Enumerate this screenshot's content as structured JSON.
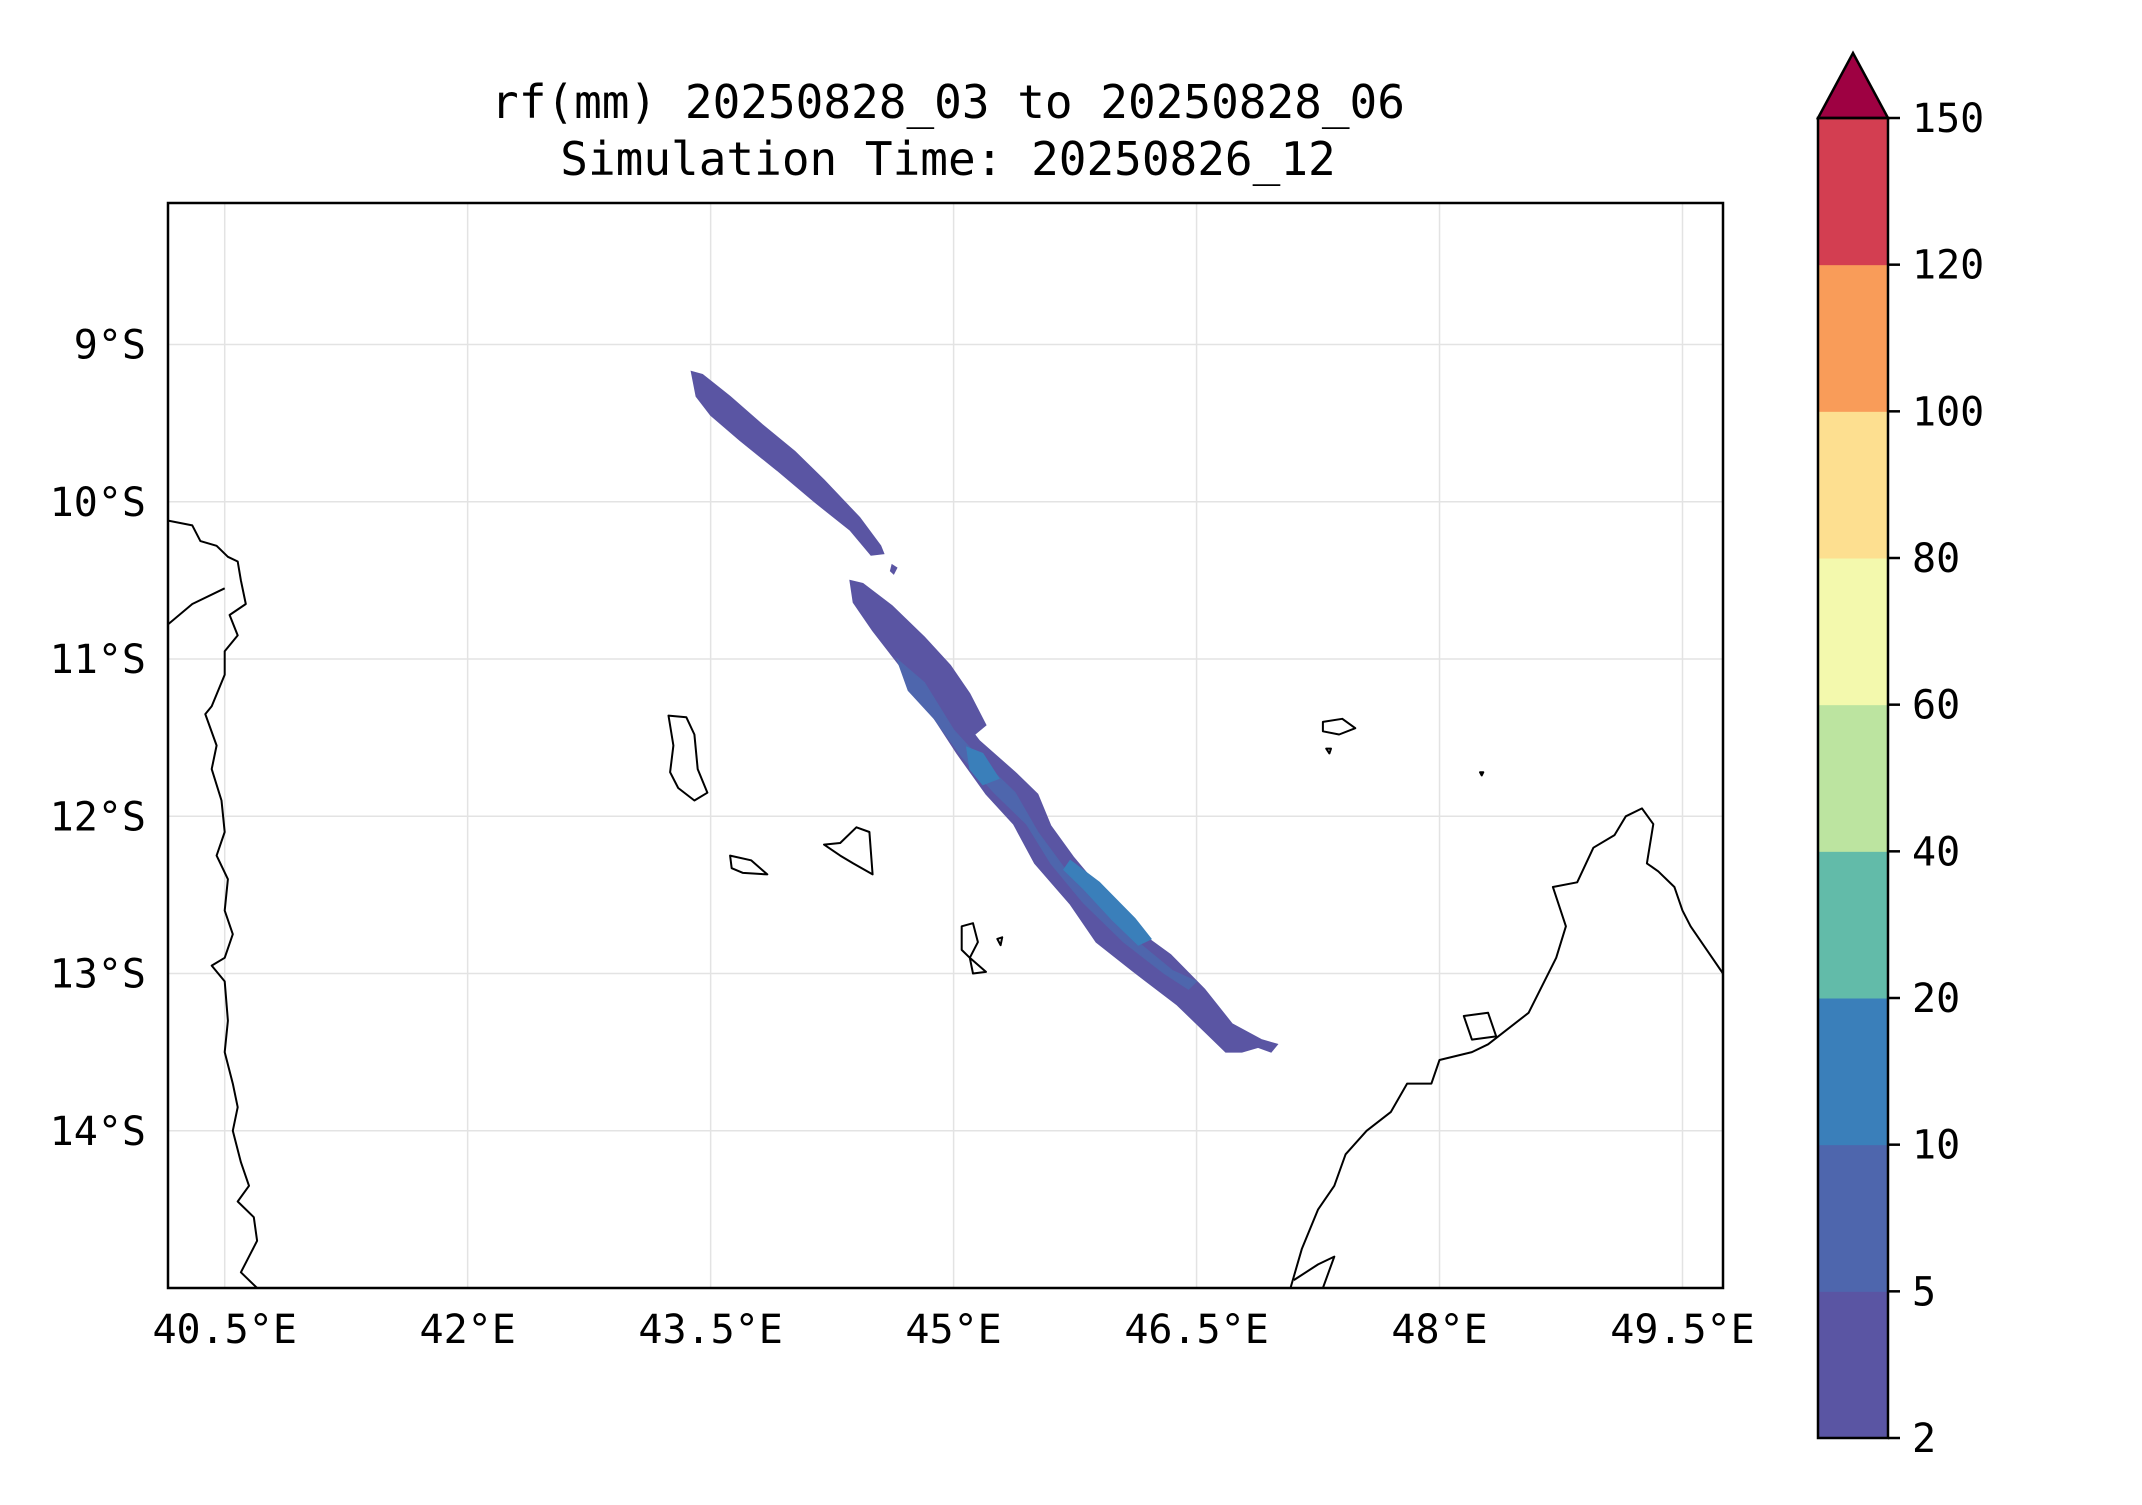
{
  "title": {
    "line1": "rf(mm) 20250828_03 to 20250828_06",
    "line2": "Simulation Time: 20250826_12"
  },
  "map": {
    "lon_range": [
      40.15,
      49.75
    ],
    "lat_range": [
      -15.0,
      -8.1
    ],
    "gridlines": true,
    "x_ticks": [
      {
        "value": 40.5,
        "label": "40.5°E"
      },
      {
        "value": 42.0,
        "label": "42°E"
      },
      {
        "value": 43.5,
        "label": "43.5°E"
      },
      {
        "value": 45.0,
        "label": "45°E"
      },
      {
        "value": 46.5,
        "label": "46.5°E"
      },
      {
        "value": 48.0,
        "label": "48°E"
      },
      {
        "value": 49.5,
        "label": "49.5°E"
      }
    ],
    "y_ticks": [
      {
        "value": -9,
        "label": "9°S"
      },
      {
        "value": -10,
        "label": "10°S"
      },
      {
        "value": -11,
        "label": "11°S"
      },
      {
        "value": -12,
        "label": "12°S"
      },
      {
        "value": -13,
        "label": "13°S"
      },
      {
        "value": -14,
        "label": "14°S"
      }
    ],
    "rain_band": {
      "outer": [
        [
          43.38,
          -9.17
        ],
        [
          43.45,
          -9.19
        ],
        [
          43.62,
          -9.33
        ],
        [
          43.82,
          -9.51
        ],
        [
          44.02,
          -9.68
        ],
        [
          44.2,
          -9.86
        ],
        [
          44.42,
          -10.1
        ],
        [
          44.55,
          -10.28
        ],
        [
          44.57,
          -10.33
        ],
        [
          44.49,
          -10.34
        ],
        [
          44.36,
          -10.18
        ],
        [
          44.14,
          -10.0
        ],
        [
          43.91,
          -9.8
        ],
        [
          43.68,
          -9.61
        ],
        [
          43.5,
          -9.45
        ],
        [
          43.41,
          -9.33
        ]
      ],
      "outer2": [
        [
          44.36,
          -10.5
        ],
        [
          44.44,
          -10.52
        ],
        [
          44.62,
          -10.66
        ],
        [
          44.82,
          -10.86
        ],
        [
          44.98,
          -11.04
        ],
        [
          45.1,
          -11.22
        ],
        [
          45.2,
          -11.42
        ],
        [
          45.13,
          -11.48
        ],
        [
          45.16,
          -11.52
        ],
        [
          45.38,
          -11.72
        ],
        [
          45.52,
          -11.86
        ],
        [
          45.6,
          -12.06
        ],
        [
          45.74,
          -12.26
        ],
        [
          45.92,
          -12.48
        ],
        [
          46.1,
          -12.7
        ],
        [
          46.34,
          -12.88
        ],
        [
          46.55,
          -13.1
        ],
        [
          46.72,
          -13.32
        ],
        [
          46.9,
          -13.42
        ],
        [
          47.0,
          -13.45
        ],
        [
          46.96,
          -13.5
        ],
        [
          46.88,
          -13.47
        ],
        [
          46.78,
          -13.5
        ],
        [
          46.68,
          -13.5
        ],
        [
          46.56,
          -13.38
        ],
        [
          46.38,
          -13.2
        ],
        [
          46.1,
          -12.98
        ],
        [
          45.88,
          -12.8
        ],
        [
          45.72,
          -12.56
        ],
        [
          45.5,
          -12.3
        ],
        [
          45.37,
          -12.05
        ],
        [
          45.2,
          -11.86
        ],
        [
          45.02,
          -11.6
        ],
        [
          44.83,
          -11.3
        ],
        [
          44.68,
          -11.06
        ],
        [
          44.5,
          -10.82
        ],
        [
          44.38,
          -10.64
        ]
      ],
      "inner": [
        [
          44.65,
          -11.0
        ],
        [
          44.82,
          -11.15
        ],
        [
          45.0,
          -11.45
        ],
        [
          45.15,
          -11.62
        ],
        [
          45.38,
          -11.85
        ],
        [
          45.52,
          -12.1
        ],
        [
          45.72,
          -12.38
        ],
        [
          46.02,
          -12.7
        ],
        [
          46.35,
          -12.98
        ],
        [
          46.5,
          -13.05
        ],
        [
          46.45,
          -13.1
        ],
        [
          46.3,
          -13.0
        ],
        [
          46.05,
          -12.8
        ],
        [
          45.8,
          -12.55
        ],
        [
          45.6,
          -12.3
        ],
        [
          45.45,
          -12.05
        ],
        [
          45.25,
          -11.85
        ],
        [
          45.05,
          -11.62
        ],
        [
          44.88,
          -11.38
        ],
        [
          44.72,
          -11.2
        ]
      ],
      "core": [
        [
          45.08,
          -11.56
        ],
        [
          45.18,
          -11.6
        ],
        [
          45.28,
          -11.76
        ],
        [
          45.18,
          -11.8
        ],
        [
          45.1,
          -11.7
        ]
      ],
      "core2": [
        [
          45.72,
          -12.28
        ],
        [
          45.9,
          -12.42
        ],
        [
          46.12,
          -12.65
        ],
        [
          46.22,
          -12.78
        ],
        [
          46.14,
          -12.82
        ],
        [
          45.98,
          -12.66
        ],
        [
          45.8,
          -12.46
        ],
        [
          45.68,
          -12.34
        ]
      ],
      "speck": [
        [
          44.62,
          -10.4
        ],
        [
          44.65,
          -10.42
        ],
        [
          44.63,
          -10.46
        ],
        [
          44.61,
          -10.44
        ]
      ]
    },
    "coastlines": {
      "tanzania": [
        [
          40.15,
          -10.12
        ],
        [
          40.3,
          -10.15
        ],
        [
          40.35,
          -10.25
        ],
        [
          40.45,
          -10.28
        ],
        [
          40.52,
          -10.35
        ],
        [
          40.58,
          -10.38
        ],
        [
          40.6,
          -10.5
        ],
        [
          40.63,
          -10.65
        ],
        [
          40.53,
          -10.72
        ],
        [
          40.58,
          -10.85
        ],
        [
          40.5,
          -10.95
        ],
        [
          40.5,
          -11.1
        ],
        [
          40.42,
          -11.3
        ],
        [
          40.38,
          -11.35
        ],
        [
          40.45,
          -11.55
        ],
        [
          40.42,
          -11.7
        ],
        [
          40.48,
          -11.9
        ],
        [
          40.5,
          -12.1
        ],
        [
          40.45,
          -12.25
        ],
        [
          40.52,
          -12.4
        ],
        [
          40.5,
          -12.6
        ],
        [
          40.55,
          -12.75
        ],
        [
          40.5,
          -12.9
        ],
        [
          40.42,
          -12.95
        ],
        [
          40.5,
          -13.05
        ],
        [
          40.52,
          -13.3
        ],
        [
          40.5,
          -13.5
        ],
        [
          40.55,
          -13.7
        ],
        [
          40.58,
          -13.85
        ],
        [
          40.55,
          -14.0
        ],
        [
          40.6,
          -14.2
        ],
        [
          40.65,
          -14.35
        ],
        [
          40.58,
          -14.45
        ],
        [
          40.68,
          -14.55
        ],
        [
          40.7,
          -14.7
        ],
        [
          40.65,
          -14.8
        ],
        [
          40.6,
          -14.9
        ],
        [
          40.7,
          -15.0
        ]
      ],
      "tanzania2": [
        [
          40.15,
          -10.78
        ],
        [
          40.3,
          -10.65
        ],
        [
          40.5,
          -10.55
        ]
      ],
      "comoros_grande": [
        [
          43.24,
          -11.36
        ],
        [
          43.35,
          -11.37
        ],
        [
          43.4,
          -11.48
        ],
        [
          43.42,
          -11.7
        ],
        [
          43.48,
          -11.85
        ],
        [
          43.4,
          -11.9
        ],
        [
          43.3,
          -11.82
        ],
        [
          43.25,
          -11.72
        ],
        [
          43.27,
          -11.55
        ]
      ],
      "comoros_moheli": [
        [
          43.62,
          -12.25
        ],
        [
          43.75,
          -12.28
        ],
        [
          43.85,
          -12.37
        ],
        [
          43.7,
          -12.36
        ],
        [
          43.63,
          -12.33
        ]
      ],
      "comoros_anjouan": [
        [
          44.2,
          -12.18
        ],
        [
          44.3,
          -12.17
        ],
        [
          44.4,
          -12.07
        ],
        [
          44.48,
          -12.1
        ],
        [
          44.5,
          -12.37
        ],
        [
          44.38,
          -12.3
        ],
        [
          44.3,
          -12.25
        ]
      ],
      "mayotte": [
        [
          45.05,
          -12.7
        ],
        [
          45.12,
          -12.68
        ],
        [
          45.15,
          -12.8
        ],
        [
          45.1,
          -12.9
        ],
        [
          45.2,
          -12.99
        ],
        [
          45.12,
          -13.0
        ],
        [
          45.1,
          -12.9
        ],
        [
          45.05,
          -12.85
        ]
      ],
      "mayotte_b": [
        [
          45.27,
          -12.78
        ],
        [
          45.3,
          -12.77
        ],
        [
          45.29,
          -12.82
        ]
      ],
      "glorioso": [
        [
          47.28,
          -11.4
        ],
        [
          47.4,
          -11.38
        ],
        [
          47.48,
          -11.44
        ],
        [
          47.38,
          -11.48
        ],
        [
          47.28,
          -11.46
        ]
      ],
      "islet1": [
        [
          47.3,
          -11.57
        ],
        [
          47.33,
          -11.57
        ],
        [
          47.32,
          -11.6
        ]
      ],
      "islet2": [
        [
          48.25,
          -11.72
        ],
        [
          48.27,
          -11.72
        ],
        [
          48.26,
          -11.74
        ]
      ],
      "madagascar": [
        [
          49.75,
          -13.0
        ],
        [
          49.65,
          -12.85
        ],
        [
          49.55,
          -12.7
        ],
        [
          49.5,
          -12.6
        ],
        [
          49.45,
          -12.45
        ],
        [
          49.35,
          -12.35
        ],
        [
          49.28,
          -12.3
        ],
        [
          49.32,
          -12.05
        ],
        [
          49.25,
          -11.95
        ],
        [
          49.15,
          -12.0
        ],
        [
          49.08,
          -12.12
        ],
        [
          48.95,
          -12.2
        ],
        [
          48.85,
          -12.42
        ],
        [
          48.7,
          -12.45
        ],
        [
          48.78,
          -12.7
        ],
        [
          48.72,
          -12.9
        ],
        [
          48.55,
          -13.25
        ],
        [
          48.3,
          -13.45
        ],
        [
          48.2,
          -13.5
        ],
        [
          48.0,
          -13.55
        ],
        [
          47.95,
          -13.7
        ],
        [
          47.8,
          -13.7
        ],
        [
          47.7,
          -13.88
        ],
        [
          47.55,
          -14.0
        ],
        [
          47.42,
          -14.15
        ],
        [
          47.35,
          -14.35
        ],
        [
          47.25,
          -14.5
        ],
        [
          47.15,
          -14.75
        ],
        [
          47.08,
          -15.0
        ]
      ],
      "nosy_be": [
        [
          48.15,
          -13.27
        ],
        [
          48.3,
          -13.25
        ],
        [
          48.35,
          -13.4
        ],
        [
          48.2,
          -13.42
        ]
      ],
      "madagascar_bits": [
        [
          47.28,
          -15.0
        ],
        [
          47.35,
          -14.8
        ],
        [
          47.25,
          -14.85
        ],
        [
          47.1,
          -14.95
        ]
      ]
    },
    "coastline_labels": []
  },
  "colorbar": {
    "levels": [
      2,
      5,
      10,
      20,
      40,
      60,
      80,
      100,
      120,
      150
    ],
    "colors": [
      "#5e4fa2",
      "#5e4fa2",
      "#3288bd",
      "#66c2a5",
      "#abdda4",
      "#e6f598",
      "#fee08b",
      "#fdae61",
      "#f46d43",
      "#d53e4f"
    ],
    "band_colors": [
      "#5a55a3",
      "#4e66ad",
      "#3a7fba",
      "#62bba9",
      "#bce4a0",
      "#f3f9ad",
      "#fddf90",
      "#f99c59",
      "#d33e51"
    ],
    "extend_color": "#9e0142",
    "tick_labels": [
      "2",
      "5",
      "10",
      "20",
      "40",
      "60",
      "80",
      "100",
      "120",
      "150"
    ]
  }
}
